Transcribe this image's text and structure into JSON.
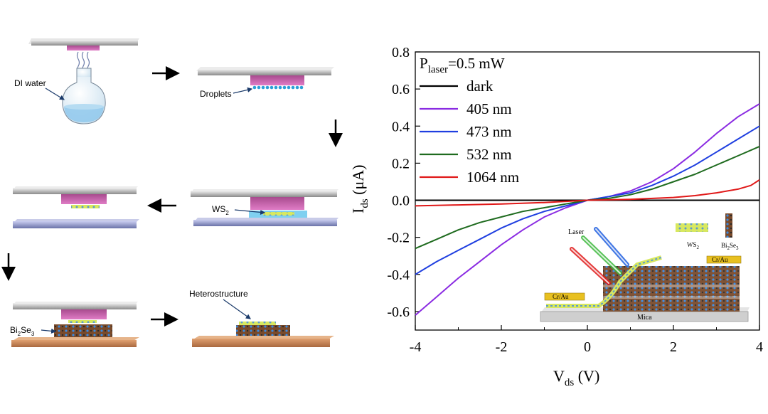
{
  "schematic": {
    "label_di_water": "DI water",
    "label_droplets": "Droplets",
    "label_ws2_main": "WS",
    "label_ws2_sub": "2",
    "label_bi": "Bi",
    "label_bi_sub1": "2",
    "label_se": "Se",
    "label_bi_sub2": "3",
    "label_heterostructure": "Heterostructure"
  },
  "inset": {
    "laser": "Laser",
    "ws2": "WS",
    "ws2_sub": "2",
    "bi": "Bi",
    "bi_sub1": "2",
    "se": "Se",
    "bi_sub2": "3",
    "electrode_left": "Cr/Au",
    "electrode_right": "Cr/Au",
    "substrate": "Mica"
  },
  "chart_data": {
    "type": "line",
    "title": "",
    "annotation": {
      "main": "P",
      "sub": "laser",
      "rest": "=0.5 mW"
    },
    "xlabel": {
      "main": "V",
      "sub": "ds",
      "rest": " (V)"
    },
    "ylabel": {
      "main": "I",
      "sub": "ds",
      "rest": " (μA)"
    },
    "xlim": [
      -4,
      4
    ],
    "ylim": [
      -0.7,
      0.8
    ],
    "xticks": [
      -4,
      -2,
      0,
      2,
      4
    ],
    "yticks": [
      0.8,
      0.6,
      0.4,
      0.2,
      0.0,
      -0.2,
      -0.4,
      -0.6
    ],
    "ytick_labels": [
      "0.8",
      "0.6",
      "0.4",
      "0.2",
      "0.0",
      "-0.2",
      "-0.4",
      "-0.6"
    ],
    "xtick_labels": [
      "-4",
      "-2",
      "0",
      "2",
      "4"
    ],
    "legend_position": "top-left",
    "series": [
      {
        "name": "dark",
        "color": "#000000",
        "x": [
          -4,
          -3,
          -2,
          -1,
          0,
          1,
          2,
          3,
          4
        ],
        "y": [
          0,
          0,
          0,
          0,
          0,
          0,
          0,
          0,
          0
        ]
      },
      {
        "name": "405 nm",
        "color": "#8a2be2",
        "x": [
          -4,
          -3.5,
          -3,
          -2.5,
          -2,
          -1.5,
          -1,
          -0.5,
          0,
          0.5,
          1,
          1.5,
          2,
          2.5,
          3,
          3.5,
          4
        ],
        "y": [
          -0.62,
          -0.52,
          -0.42,
          -0.33,
          -0.24,
          -0.16,
          -0.09,
          -0.04,
          0.0,
          0.02,
          0.05,
          0.1,
          0.17,
          0.26,
          0.36,
          0.45,
          0.52
        ]
      },
      {
        "name": "473 nm",
        "color": "#1f3fe0",
        "x": [
          -4,
          -3.5,
          -3,
          -2.5,
          -2,
          -1.5,
          -1,
          -0.5,
          0,
          0.5,
          1,
          1.5,
          2,
          2.5,
          3,
          3.5,
          4
        ],
        "y": [
          -0.4,
          -0.33,
          -0.27,
          -0.21,
          -0.15,
          -0.1,
          -0.06,
          -0.03,
          0.0,
          0.02,
          0.04,
          0.08,
          0.13,
          0.19,
          0.26,
          0.33,
          0.4
        ]
      },
      {
        "name": "532 nm",
        "color": "#1f6b1f",
        "x": [
          -4,
          -3.5,
          -3,
          -2.5,
          -2,
          -1.5,
          -1,
          -0.5,
          0,
          0.5,
          1,
          1.5,
          2,
          2.5,
          3,
          3.5,
          4
        ],
        "y": [
          -0.26,
          -0.21,
          -0.16,
          -0.12,
          -0.09,
          -0.06,
          -0.04,
          -0.02,
          0.0,
          0.01,
          0.03,
          0.06,
          0.1,
          0.14,
          0.19,
          0.24,
          0.29
        ]
      },
      {
        "name": "1064 nm",
        "color": "#e01818",
        "x": [
          -4,
          -3,
          -2,
          -1,
          0,
          1,
          2,
          2.5,
          3,
          3.5,
          3.8,
          4
        ],
        "y": [
          -0.03,
          -0.025,
          -0.02,
          -0.012,
          0.0,
          0.005,
          0.015,
          0.025,
          0.04,
          0.06,
          0.08,
          0.11
        ]
      }
    ]
  },
  "colors": {
    "plate": "#9e9e9e",
    "plate_top": "#d6d6d6",
    "heater": "#c060a8",
    "mica": "#8088b8",
    "substrate_brown": "#b8764a",
    "water": "#8fc8ec",
    "droplet": "#2a9fd8"
  }
}
